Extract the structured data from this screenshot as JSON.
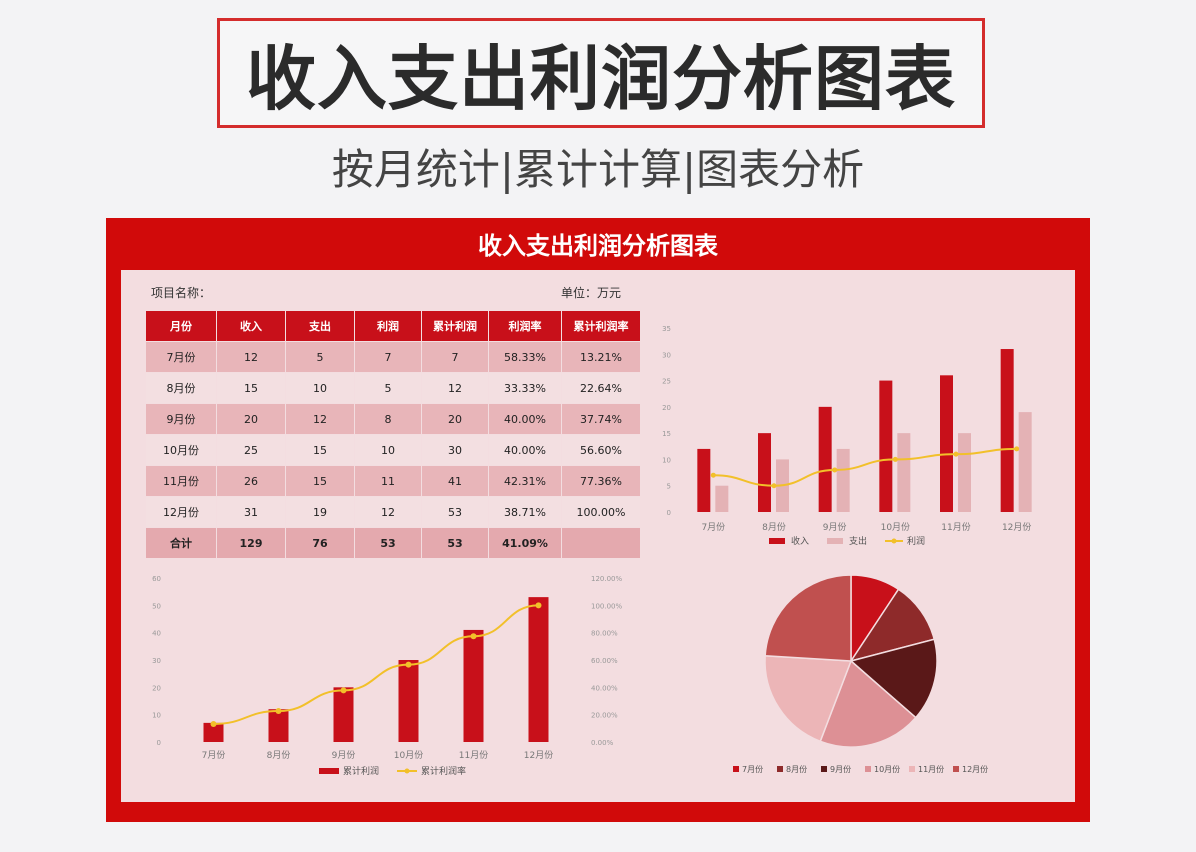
{
  "hero": {
    "title": "收入支出利润分析图表",
    "subtitle": "按月统计|累计计算|图表分析"
  },
  "panel": {
    "title": "收入支出利润分析图表",
    "project_label": "项目名称：",
    "unit_label": "单位：万元"
  },
  "table": {
    "headers": [
      "月份",
      "收入",
      "支出",
      "利润",
      "累计利润",
      "利润率",
      "累计利润率"
    ],
    "rows": [
      [
        "7月份",
        "12",
        "5",
        "7",
        "7",
        "58.33%",
        "13.21%"
      ],
      [
        "8月份",
        "15",
        "10",
        "5",
        "12",
        "33.33%",
        "22.64%"
      ],
      [
        "9月份",
        "20",
        "12",
        "8",
        "20",
        "40.00%",
        "37.74%"
      ],
      [
        "10月份",
        "25",
        "15",
        "10",
        "30",
        "40.00%",
        "56.60%"
      ],
      [
        "11月份",
        "26",
        "15",
        "11",
        "41",
        "42.31%",
        "77.36%"
      ],
      [
        "12月份",
        "31",
        "19",
        "12",
        "53",
        "38.71%",
        "100.00%"
      ]
    ],
    "total": [
      "合计",
      "129",
      "76",
      "53",
      "53",
      "41.09%",
      ""
    ]
  },
  "chart_data": [
    {
      "type": "bar",
      "categories": [
        "7月份",
        "8月份",
        "9月份",
        "10月份",
        "11月份",
        "12月份"
      ],
      "series": [
        {
          "name": "收入",
          "values": [
            12,
            15,
            20,
            25,
            26,
            31
          ],
          "color": "#c8101a"
        },
        {
          "name": "支出",
          "values": [
            5,
            10,
            12,
            15,
            15,
            19
          ],
          "color": "#e4b2b5"
        },
        {
          "name": "利润",
          "values": [
            7,
            5,
            8,
            10,
            11,
            12
          ],
          "color": "#f2c02a"
        }
      ],
      "ylim": [
        0,
        35
      ],
      "yticks": [
        0,
        5,
        10,
        15,
        20,
        25,
        30,
        35
      ],
      "legend": "bottom"
    },
    {
      "type": "bar",
      "categories": [
        "7月份",
        "8月份",
        "9月份",
        "10月份",
        "11月份",
        "12月份"
      ],
      "series": [
        {
          "name": "累计利润",
          "values": [
            7,
            12,
            20,
            30,
            41,
            53
          ],
          "color": "#c8101a"
        },
        {
          "name": "累计利润率",
          "values": [
            13.21,
            22.64,
            37.74,
            56.6,
            77.36,
            100.0
          ],
          "color": "#f2c02a"
        }
      ],
      "ylim": [
        0,
        60
      ],
      "yticks": [
        0,
        10,
        20,
        30,
        40,
        50,
        60
      ],
      "y2lim": [
        0,
        120
      ],
      "y2ticks": [
        "0.00%",
        "20.00%",
        "40.00%",
        "60.00%",
        "80.00%",
        "100.00%",
        "120.00%"
      ],
      "legend": "bottom"
    },
    {
      "type": "pie",
      "categories": [
        "7月份",
        "8月份",
        "9月份",
        "10月份",
        "11月份",
        "12月份"
      ],
      "values": [
        12,
        15,
        20,
        25,
        26,
        31
      ],
      "colors": [
        "#c8101a",
        "#8e2a2a",
        "#5a1818",
        "#dd9095",
        "#ecb5b7",
        "#c0504f"
      ],
      "legend": "bottom"
    }
  ]
}
